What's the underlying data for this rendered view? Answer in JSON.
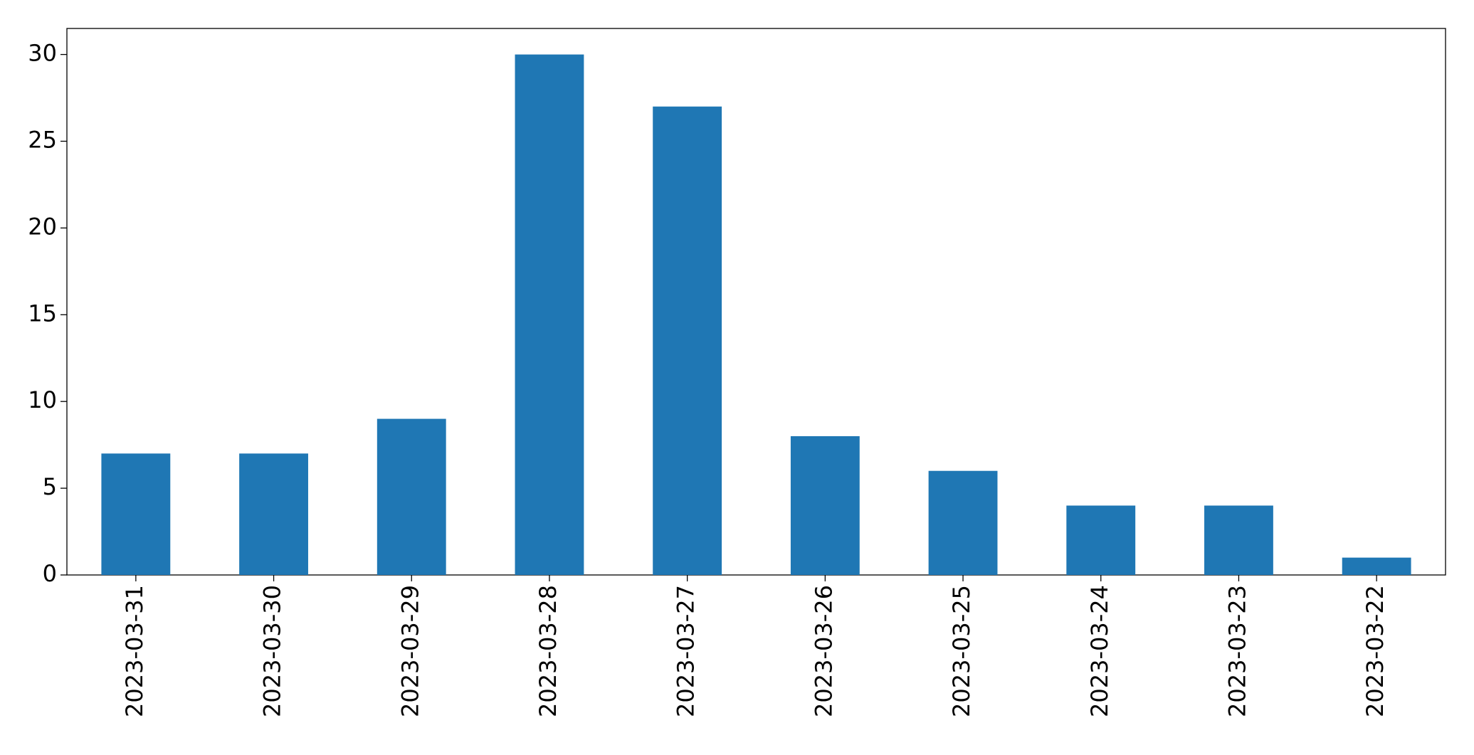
{
  "chart_data": {
    "type": "bar",
    "categories": [
      "2023-03-31",
      "2023-03-30",
      "2023-03-29",
      "2023-03-28",
      "2023-03-27",
      "2023-03-26",
      "2023-03-25",
      "2023-03-24",
      "2023-03-23",
      "2023-03-22"
    ],
    "values": [
      7,
      7,
      9,
      30,
      27,
      8,
      6,
      4,
      4,
      1
    ],
    "color": "#1f77b4",
    "ylim": [
      0,
      31.5
    ],
    "yticks": [
      0,
      5,
      10,
      15,
      20,
      25,
      30
    ],
    "grid": false
  }
}
